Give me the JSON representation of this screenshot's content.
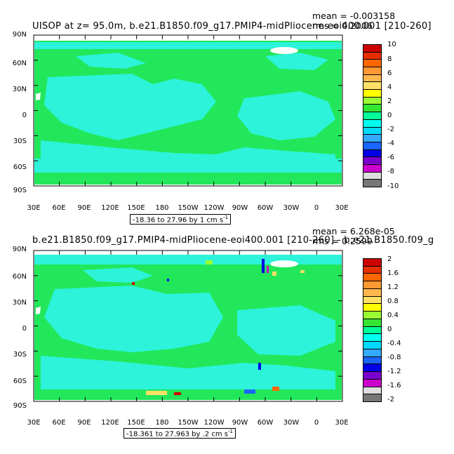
{
  "top": {
    "title": "UISOP at z=   95.0m, b.e21.B1850.f09_g17.PMIP4-midPliocene-eoi400.001 [210-260]",
    "mean": "mean = -0.003158",
    "rms": "rms = 0.2006",
    "range_text": "-18.36 to 27.96 by 1 cm s",
    "range_unit_sup": "-1",
    "colorbar_labels": [
      "10",
      "8",
      "6",
      "4",
      "2",
      "0",
      "-2",
      "-4",
      "-6",
      "-8",
      "-10"
    ],
    "colorbar_colors": [
      "#cc0000",
      "#e62e00",
      "#ff6600",
      "#ff9933",
      "#ffb84d",
      "#ffe066",
      "#ffff00",
      "#99ff33",
      "#33e633",
      "#00ff99",
      "#00ffee",
      "#00d9ff",
      "#33aaff",
      "#1a66ff",
      "#0000e6",
      "#7a00cc",
      "#cc00cc",
      "#dddddd",
      "#777777"
    ]
  },
  "bottom": {
    "title": "b.e21.B1850.f09_g17.PMIP4-midPliocene-eoi400.001 [210-260] - b.e21.B1850.f09_g",
    "mean": "mean = 6.268e-05",
    "rms": "rms = 0.2599",
    "range_text": "-18.361 to 27.963 by .2 cm s",
    "range_unit_sup": "-1",
    "colorbar_labels": [
      "2",
      "1.6",
      "1.2",
      "0.8",
      "0.4",
      "0",
      "-0.4",
      "-0.8",
      "-1.2",
      "-1.6",
      "-2"
    ],
    "colorbar_colors": [
      "#cc0000",
      "#e62e00",
      "#ff6600",
      "#ff9933",
      "#ffb84d",
      "#ffe066",
      "#ffff00",
      "#99ff33",
      "#33e633",
      "#00ff99",
      "#00ffee",
      "#00d9ff",
      "#33aaff",
      "#1a66ff",
      "#0000e6",
      "#7a00cc",
      "#cc00cc",
      "#dddddd",
      "#777777"
    ]
  },
  "lat_labels": [
    "90N",
    "60N",
    "30N",
    "0",
    "30S",
    "60S",
    "90S"
  ],
  "lon_labels": [
    "30E",
    "60E",
    "90E",
    "120E",
    "150E",
    "180",
    "150W",
    "120W",
    "90W",
    "60W",
    "30W",
    "0",
    "30E"
  ],
  "colors": {
    "ocean_main": "#22e75a",
    "ocean_alt": "#2cf3d9",
    "land": "#ffffff"
  }
}
